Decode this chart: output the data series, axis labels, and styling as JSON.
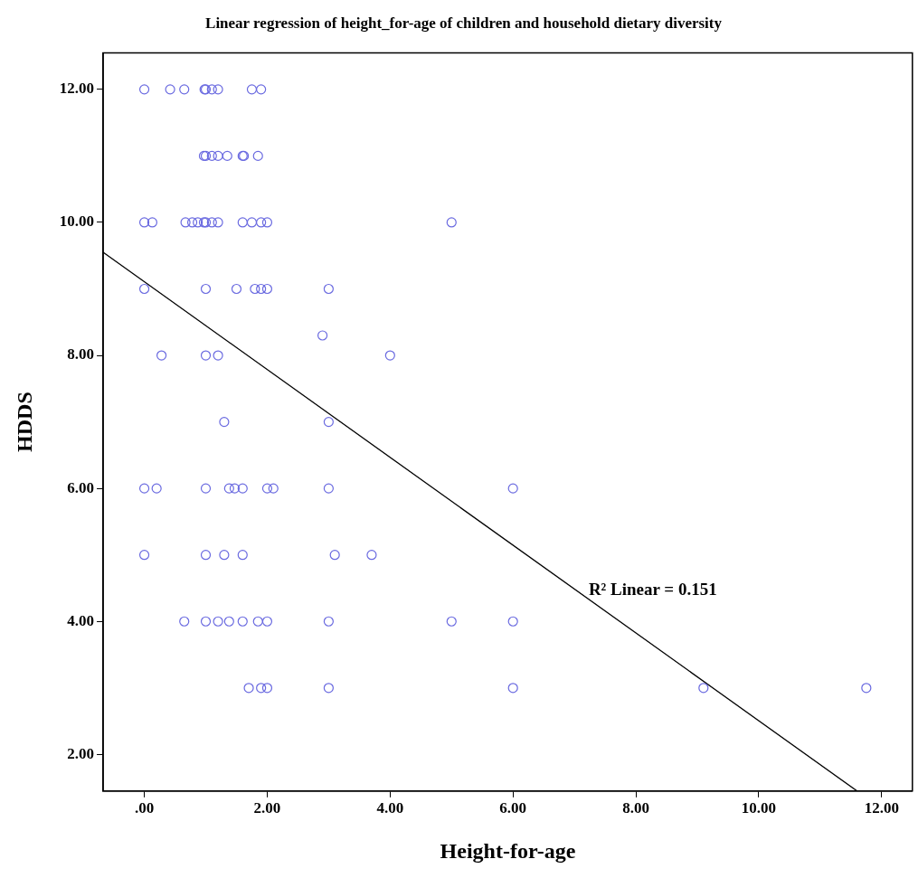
{
  "chart_data": {
    "type": "scatter",
    "title": "Linear regression of height_for-age of children and household dietary diversity",
    "xlabel": "Height-for-age",
    "ylabel": "HDDS",
    "xlim": [
      -0.67,
      12.5
    ],
    "xticks": [
      {
        "value": 0,
        "label": ".00"
      },
      {
        "value": 2,
        "label": "2.00"
      },
      {
        "value": 4,
        "label": "4.00"
      },
      {
        "value": 6,
        "label": "6.00"
      },
      {
        "value": 8,
        "label": "8.00"
      },
      {
        "value": 10,
        "label": "10.00"
      },
      {
        "value": 12,
        "label": "12.00"
      }
    ],
    "ylim": [
      1.45,
      12.55
    ],
    "yticks": [
      {
        "value": 2,
        "label": "2.00"
      },
      {
        "value": 4,
        "label": "4.00"
      },
      {
        "value": 6,
        "label": "6.00"
      },
      {
        "value": 8,
        "label": "8.00"
      },
      {
        "value": 10,
        "label": "10.00"
      },
      {
        "value": 12,
        "label": "12.00"
      }
    ],
    "grid": false,
    "legend": false,
    "marker": "circle",
    "series": [
      {
        "color": "#6a6ae0",
        "x": [
          0,
          0.42,
          0.65,
          0.98,
          1.0,
          1.1,
          1.2,
          1.75,
          1.9,
          0.97,
          1.0,
          1.1,
          1.2,
          1.35,
          1.6,
          1.62,
          1.85,
          0,
          0.13,
          0.67,
          0.78,
          0.87,
          0.97,
          1.0,
          1.1,
          1.2,
          1.6,
          1.75,
          1.9,
          2.0,
          5.0,
          0,
          1.0,
          1.5,
          1.8,
          1.9,
          2.0,
          3.0,
          2.9,
          0.28,
          1.0,
          1.2,
          4.0,
          1.3,
          3.0,
          0,
          0.2,
          1.0,
          1.38,
          1.47,
          1.6,
          2.0,
          2.1,
          3.0,
          6.0,
          0,
          1.0,
          1.3,
          1.6,
          3.1,
          3.7,
          0.65,
          1.0,
          1.2,
          1.38,
          1.6,
          1.85,
          2.0,
          3.0,
          5.0,
          6.0,
          1.7,
          1.9,
          2.0,
          3.0,
          6.0,
          9.1,
          11.75
        ],
        "values": [
          12,
          12,
          12,
          12,
          12,
          12,
          12,
          12,
          12,
          11,
          11,
          11,
          11,
          11,
          11,
          11,
          11,
          10,
          10,
          10,
          10,
          10,
          10,
          10,
          10,
          10,
          10,
          10,
          10,
          10,
          10,
          9,
          9,
          9,
          9,
          9,
          9,
          9,
          8.3,
          8,
          8,
          8,
          8,
          7,
          7,
          6,
          6,
          6,
          6,
          6,
          6,
          6,
          6,
          6,
          6,
          5,
          5,
          5,
          5,
          5,
          5,
          4,
          4,
          4,
          4,
          4,
          4,
          4,
          4,
          4,
          4,
          3,
          3,
          3,
          3,
          3,
          3,
          3
        ]
      },
      {
        "type": "line",
        "color": "#000000",
        "marker": "none",
        "line_style": "solid",
        "x": [
          -0.67,
          11.6
        ],
        "values": [
          9.55,
          1.45
        ]
      }
    ],
    "annotations": [
      "R² Linear = 0.151"
    ]
  }
}
